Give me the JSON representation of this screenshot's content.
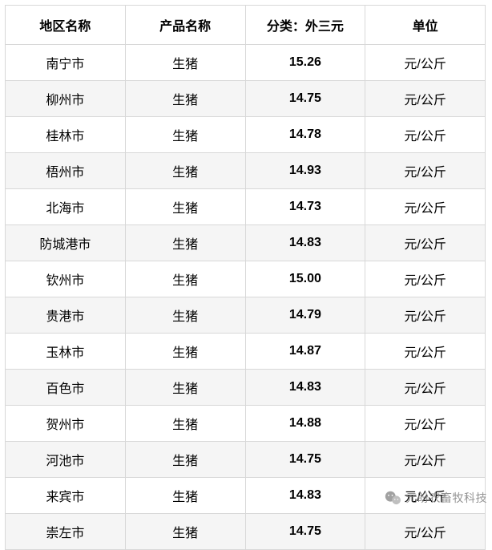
{
  "table": {
    "columns": [
      {
        "label": "地区名称",
        "width": "25%"
      },
      {
        "label": "产品名称",
        "width": "25%"
      },
      {
        "label": "分类：外三元",
        "width": "25%"
      },
      {
        "label": "单位",
        "width": "25%"
      }
    ],
    "rows": [
      {
        "region": "南宁市",
        "product": "生猪",
        "price": "15.26",
        "unit": "元/公斤"
      },
      {
        "region": "柳州市",
        "product": "生猪",
        "price": "14.75",
        "unit": "元/公斤"
      },
      {
        "region": "桂林市",
        "product": "生猪",
        "price": "14.78",
        "unit": "元/公斤"
      },
      {
        "region": "梧州市",
        "product": "生猪",
        "price": "14.93",
        "unit": "元/公斤"
      },
      {
        "region": "北海市",
        "product": "生猪",
        "price": "14.73",
        "unit": "元/公斤"
      },
      {
        "region": "防城港市",
        "product": "生猪",
        "price": "14.83",
        "unit": "元/公斤"
      },
      {
        "region": "钦州市",
        "product": "生猪",
        "price": "15.00",
        "unit": "元/公斤"
      },
      {
        "region": "贵港市",
        "product": "生猪",
        "price": "14.79",
        "unit": "元/公斤"
      },
      {
        "region": "玉林市",
        "product": "生猪",
        "price": "14.87",
        "unit": "元/公斤"
      },
      {
        "region": "百色市",
        "product": "生猪",
        "price": "14.83",
        "unit": "元/公斤"
      },
      {
        "region": "贺州市",
        "product": "生猪",
        "price": "14.88",
        "unit": "元/公斤"
      },
      {
        "region": "河池市",
        "product": "生猪",
        "price": "14.75",
        "unit": "元/公斤"
      },
      {
        "region": "来宾市",
        "product": "生猪",
        "price": "14.83",
        "unit": "元/公斤"
      },
      {
        "region": "崇左市",
        "product": "生猪",
        "price": "14.75",
        "unit": "元/公斤"
      }
    ],
    "header_bg": "#ffffff",
    "row_alt_bg": "#f5f5f5",
    "row_bg": "#ffffff",
    "border_color": "#d8d8d8",
    "text_color": "#000000",
    "header_fontsize": 16,
    "cell_fontsize": 16
  },
  "watermark": {
    "text": "元盼农畜牧科技",
    "icon": "wechat-icon",
    "icon_color": "#8a8a8a",
    "text_color": "#7a7a7a"
  }
}
